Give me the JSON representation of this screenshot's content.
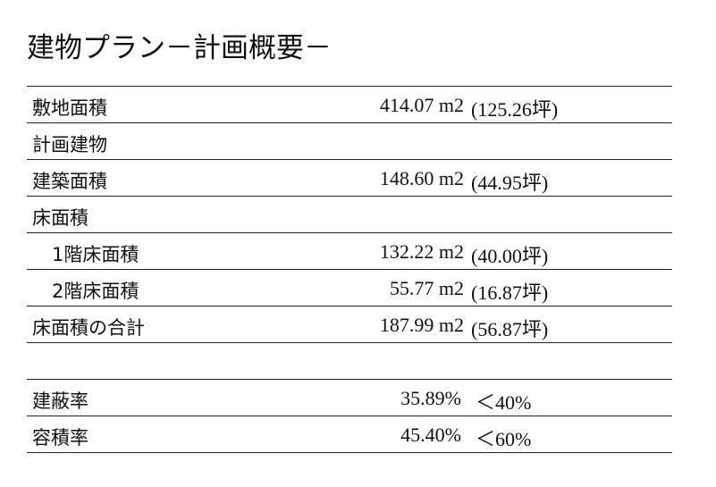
{
  "title": "建物プラン－計画概要－",
  "table": {
    "rows": [
      [
        "敷地面積",
        "414.07 m2",
        "(125.26坪)"
      ],
      [
        "計画建物"
      ],
      [
        "建築面積",
        "148.60 m2",
        "(44.95坪)"
      ],
      [
        "床面積"
      ],
      [
        "1階床面積",
        "132.22 m2",
        "(40.00坪)"
      ],
      [
        "2階床面積",
        "55.77 m2",
        "(16.87坪)"
      ],
      [
        "床面積の合計",
        "187.99 m2",
        "(56.87坪)"
      ]
    ],
    "ratios": [
      [
        "建蔽率",
        "35.89%",
        "＜40%"
      ],
      [
        "容積率",
        "45.40%",
        "＜60%"
      ]
    ]
  }
}
